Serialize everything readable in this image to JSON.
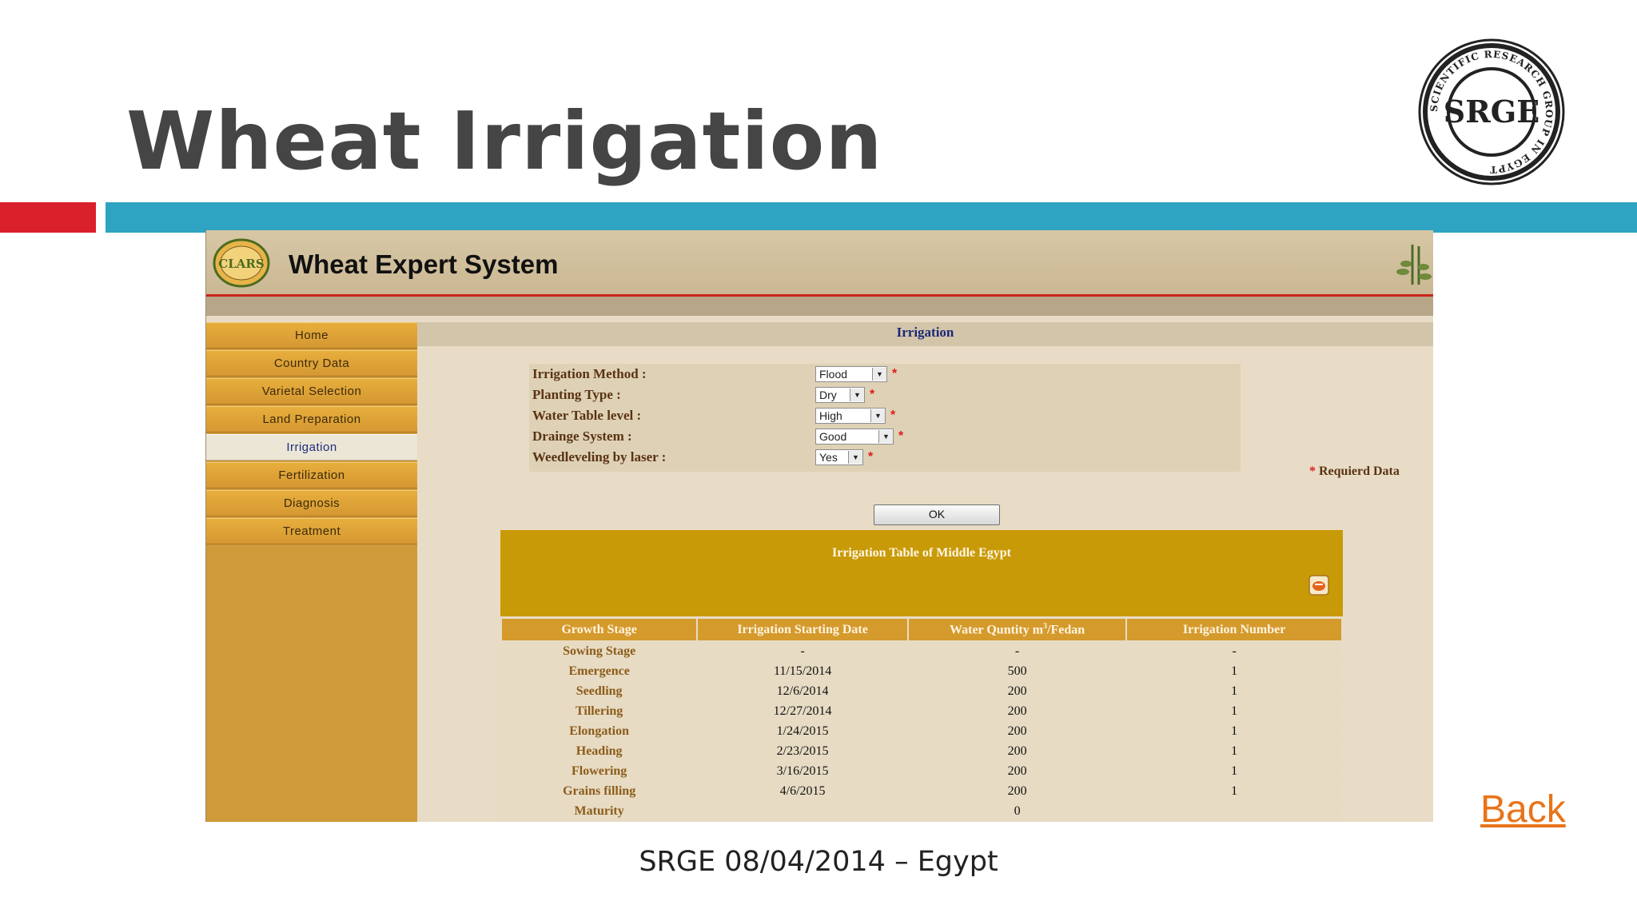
{
  "slide": {
    "title": "Wheat Irrigation",
    "logo_text": "SRGE",
    "logo_ring_text": "SCIENTIFIC RESEARCH GROUP IN EGYPT",
    "back_label": "Back",
    "footer": "SRGE 08/04/2014 – Egypt",
    "colors": {
      "red_bar": "#d9202b",
      "blue_bar": "#2ea3c2",
      "back_link": "#e8741a"
    }
  },
  "app": {
    "title": "Wheat Expert System",
    "logo_text": "CLARS",
    "sidebar": {
      "items": [
        {
          "label": "Home",
          "active": false
        },
        {
          "label": "Country Data",
          "active": false
        },
        {
          "label": "Varietal Selection",
          "active": false
        },
        {
          "label": "Land Preparation",
          "active": false
        },
        {
          "label": "Irrigation",
          "active": true
        },
        {
          "label": "Fertilization",
          "active": false
        },
        {
          "label": "Diagnosis",
          "active": false
        },
        {
          "label": "Treatment",
          "active": false
        }
      ]
    },
    "section_title": "Irrigation",
    "form": {
      "fields": [
        {
          "label": "Irrigation Method :",
          "value": "Flood"
        },
        {
          "label": "Planting Type :",
          "value": "Dry"
        },
        {
          "label": "Water Table level :",
          "value": "High"
        },
        {
          "label": "Drainge System :",
          "value": "Good"
        },
        {
          "label": "Weedleveling by laser :",
          "value": "Yes"
        }
      ],
      "required_marker": "*",
      "required_note": "Requierd Data",
      "ok_label": "OK"
    },
    "table": {
      "caption": "Irrigation Table of Middle Egypt",
      "headers": [
        "Growth Stage",
        "Irrigation Starting Date",
        "Water Quntity m",
        "/Fedan",
        "Irrigation Number"
      ],
      "header_superscript": "3",
      "rows": [
        [
          "Sowing Stage",
          "-",
          "-",
          "-"
        ],
        [
          "Emergence",
          "11/15/2014",
          "500",
          "1"
        ],
        [
          "Seedling",
          "12/6/2014",
          "200",
          "1"
        ],
        [
          "Tillering",
          "12/27/2014",
          "200",
          "1"
        ],
        [
          "Elongation",
          "1/24/2015",
          "200",
          "1"
        ],
        [
          "Heading",
          "2/23/2015",
          "200",
          "1"
        ],
        [
          "Flowering",
          "3/16/2015",
          "200",
          "1"
        ],
        [
          "Grains filling",
          "4/6/2015",
          "200",
          "1"
        ],
        [
          "Maturity",
          "",
          "0",
          ""
        ]
      ]
    }
  }
}
